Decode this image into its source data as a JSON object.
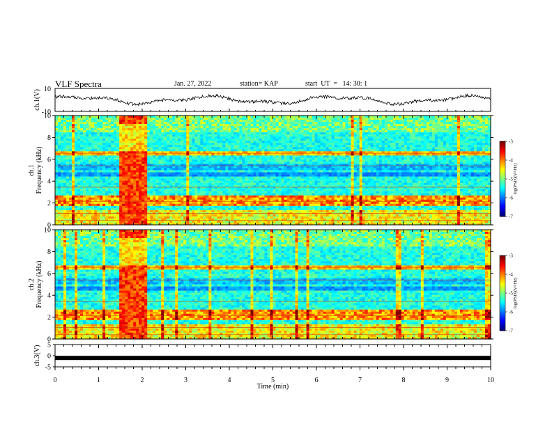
{
  "header": {
    "title": "VLF Spectra",
    "date": "Jan. 27, 2022",
    "station": "station= KAP",
    "start": "start  UT  =   14: 30: 1"
  },
  "chart_data": [
    {
      "type": "line",
      "panel": "ch1-waveform",
      "ylabel": "ch.1(V)",
      "ylim": [
        -10,
        10
      ],
      "yticks": [
        10,
        -10
      ],
      "xlim": [
        0,
        10
      ],
      "description_series_color": "#000000"
    },
    {
      "type": "heatmap",
      "panel": "ch1-spectrogram",
      "ylabel": "ch.1\nFrequency  (kHz)",
      "ylabel_line1": "ch.1",
      "ylabel_line2": "Frequency  (kHz)",
      "ylim": [
        0,
        10
      ],
      "yticks": [
        "0",
        "2",
        "4",
        "6",
        "8",
        "10"
      ],
      "xlim": [
        0,
        10
      ],
      "colorbar": {
        "label": "log(PSD)(V²/Hz)",
        "range": [
          -7,
          -3
        ],
        "ticks": [
          "-3",
          "-4",
          "-5",
          "-6",
          "-7"
        ]
      },
      "broadband_burst_min": [
        1.45,
        2.1
      ]
    },
    {
      "type": "heatmap",
      "panel": "ch2-spectrogram",
      "ylabel_line1": "ch.2",
      "ylabel_line2": "Frequency  (kHz)",
      "ylim": [
        0,
        10
      ],
      "yticks": [
        "0",
        "2",
        "4",
        "6",
        "8",
        "10"
      ],
      "xlim": [
        0,
        10
      ],
      "colorbar": {
        "label": "log(PSD)(V²/Hz)",
        "range": [
          -7,
          -3
        ],
        "ticks": [
          "-3",
          "-4",
          "-5",
          "-6",
          "-7"
        ]
      },
      "broadband_burst_min": [
        1.45,
        2.1
      ]
    },
    {
      "type": "line",
      "panel": "ch3-waveform",
      "ylabel": "ch.3(V)",
      "ylim": [
        -5,
        5
      ],
      "yticks": [
        "5",
        "0",
        "-5"
      ],
      "xlim": [
        0,
        10
      ],
      "xlabel": "Time  (min)",
      "xticks": [
        "0",
        "1",
        "2",
        "3",
        "4",
        "5",
        "6",
        "7",
        "8",
        "9",
        "10"
      ],
      "value_approx": -1.0
    }
  ],
  "colors": {
    "cmap": [
      "#00007f",
      "#0000ff",
      "#0080ff",
      "#00ffff",
      "#80ff80",
      "#ffff00",
      "#ff8000",
      "#ff0000",
      "#7f0000"
    ]
  }
}
